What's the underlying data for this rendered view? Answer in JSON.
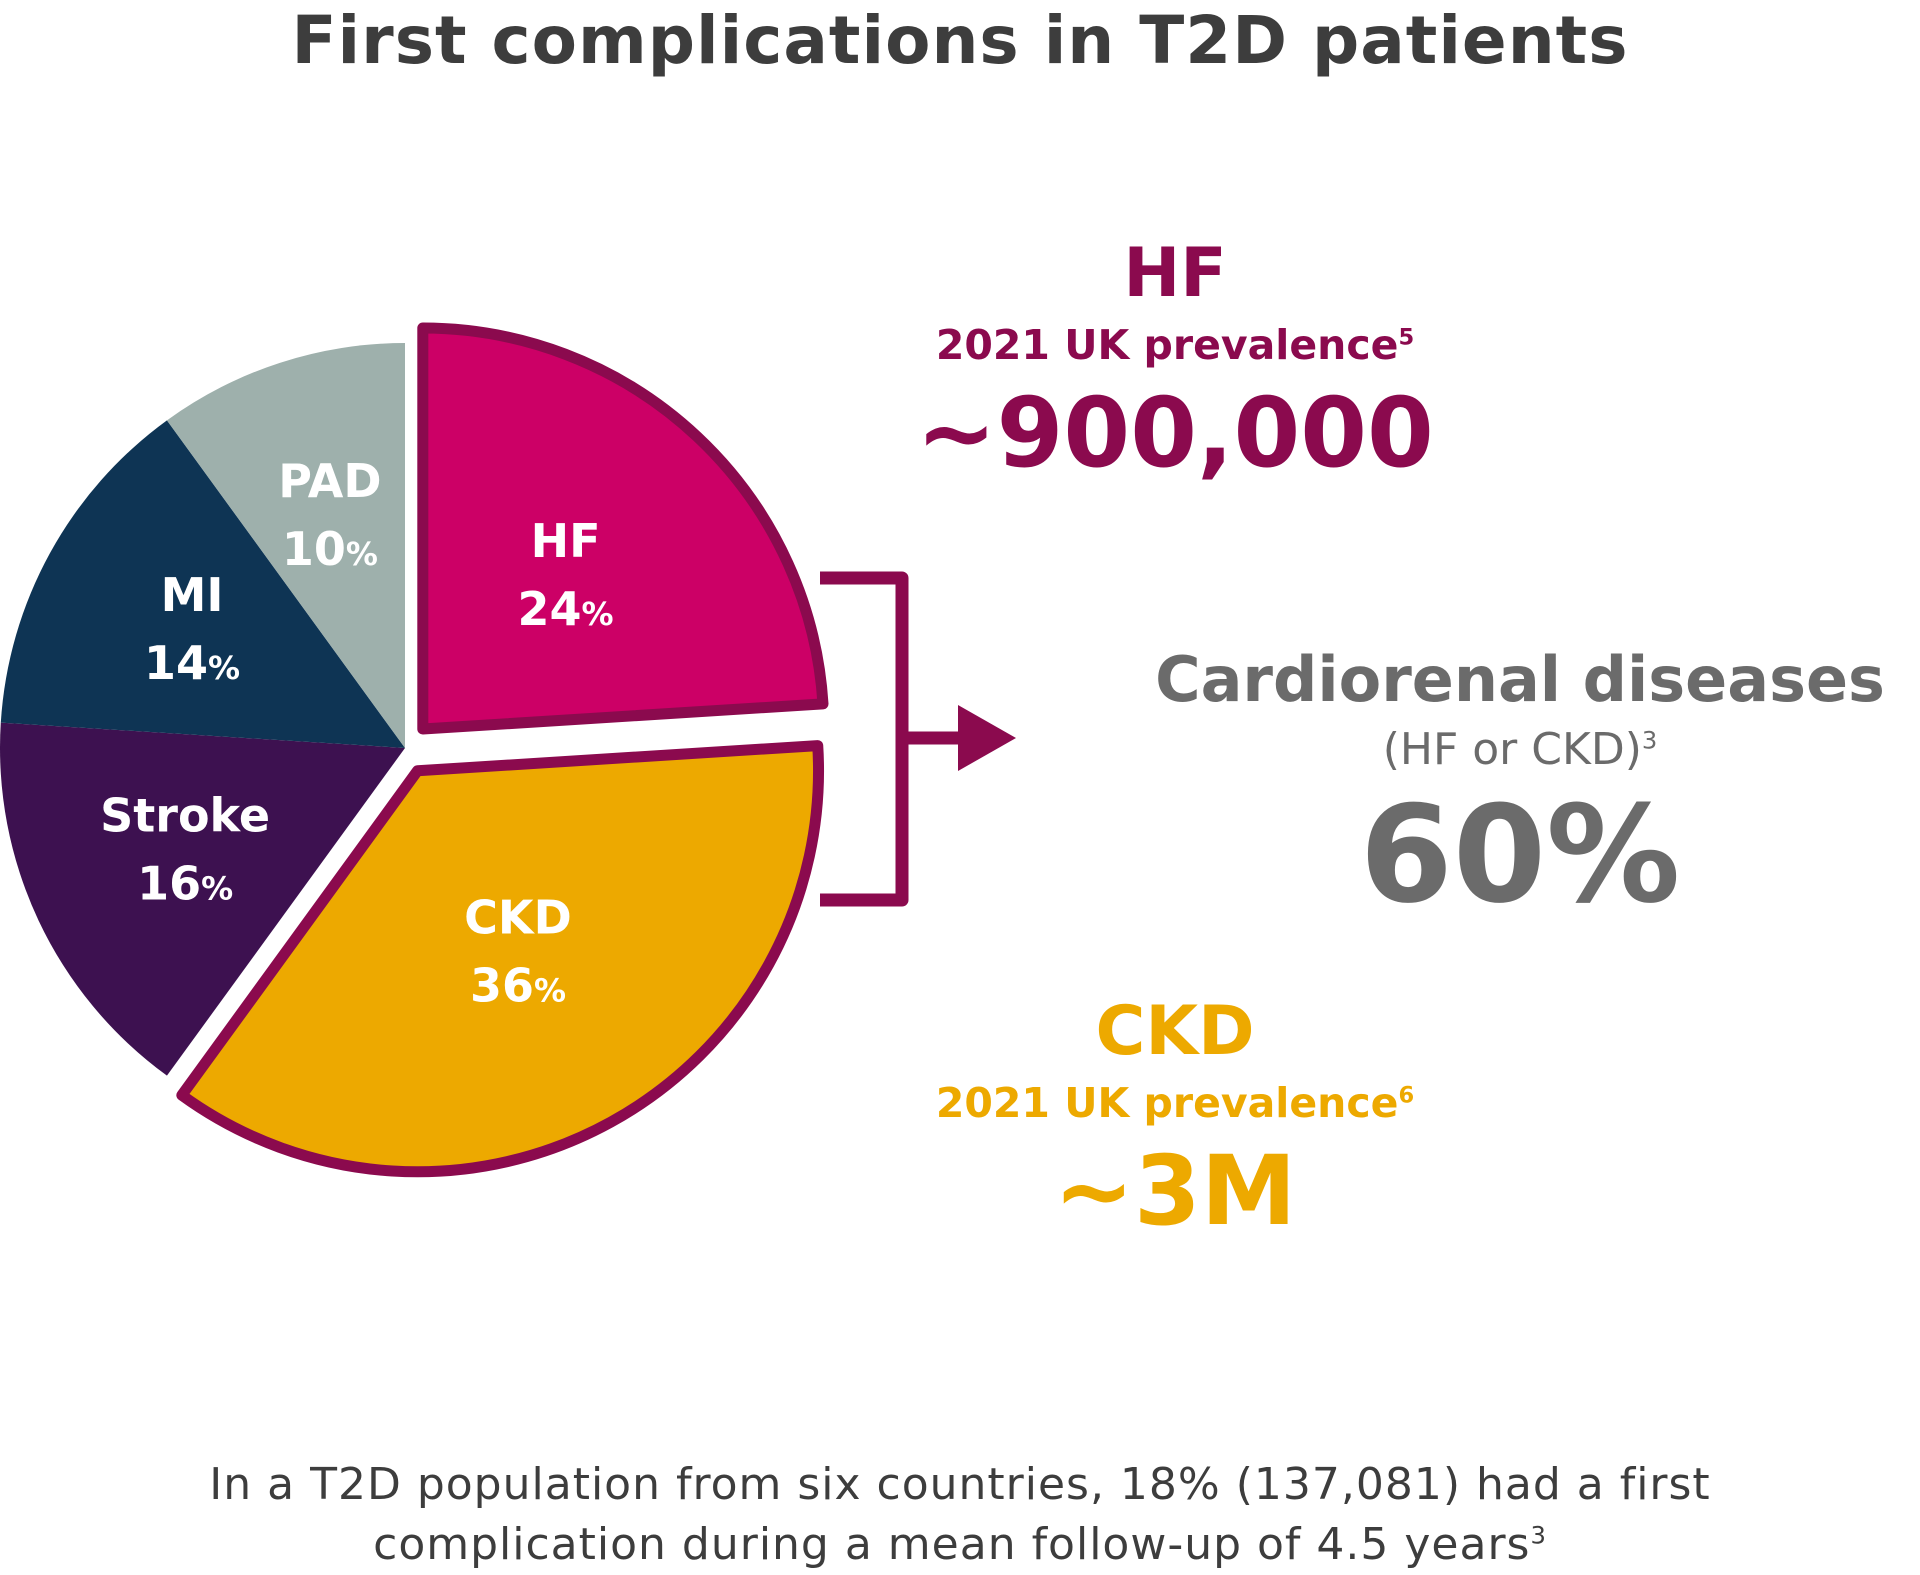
{
  "title": "First complications in T2D patients",
  "chart_data": {
    "type": "pie",
    "slices": [
      {
        "label": "HF",
        "value": 24,
        "value_text": "24",
        "unit": "%",
        "color": "#CC0066",
        "exploded": true,
        "outlined": true
      },
      {
        "label": "CKD",
        "value": 36,
        "value_text": "36",
        "unit": "%",
        "color": "#EDA900",
        "exploded": true,
        "outlined": true
      },
      {
        "label": "Stroke",
        "value": 16,
        "value_text": "16",
        "unit": "%",
        "color": "#3D1150"
      },
      {
        "label": "MI",
        "value": 14,
        "value_text": "14",
        "unit": "%",
        "color": "#0E3454"
      },
      {
        "label": "PAD",
        "value": 10,
        "value_text": "10",
        "unit": "%",
        "color": "#9EB0AC"
      }
    ],
    "outline_color": "#8B0A4E"
  },
  "hf_callout": {
    "heading": "HF",
    "subtitle": "2021 UK prevalence",
    "ref": "5",
    "value": "~900,000",
    "color": "#8B0A4E"
  },
  "cardiorenal": {
    "heading": "Cardiorenal diseases",
    "subtitle": "(HF or CKD)",
    "ref": "3",
    "value": "60%",
    "color": "#6B6B6B"
  },
  "ckd_callout": {
    "heading": "CKD",
    "subtitle": "2021 UK prevalence",
    "ref": "6",
    "value": "~3M",
    "color": "#EDA900"
  },
  "footnote": {
    "line1": "In a T2D population from six countries, 18% (137,081) had a first",
    "line2": "complication during a mean follow-up of 4.5 years",
    "ref": "3"
  }
}
